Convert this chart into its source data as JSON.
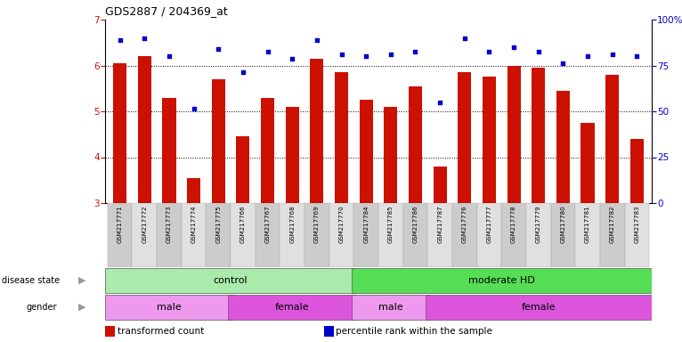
{
  "title": "GDS2887 / 204369_at",
  "samples": [
    "GSM217771",
    "GSM217772",
    "GSM217773",
    "GSM217774",
    "GSM217775",
    "GSM217766",
    "GSM217767",
    "GSM217768",
    "GSM217769",
    "GSM217770",
    "GSM217784",
    "GSM217785",
    "GSM217786",
    "GSM217787",
    "GSM217776",
    "GSM217777",
    "GSM217778",
    "GSM217779",
    "GSM217780",
    "GSM217781",
    "GSM217782",
    "GSM217783"
  ],
  "bar_values": [
    6.05,
    6.2,
    5.3,
    3.55,
    5.7,
    4.45,
    5.3,
    5.1,
    6.15,
    5.85,
    5.25,
    5.1,
    5.55,
    3.8,
    5.85,
    5.75,
    6.0,
    5.95,
    5.45,
    4.75,
    5.8,
    4.4
  ],
  "dot_values": [
    6.55,
    6.6,
    6.2,
    5.05,
    6.35,
    5.85,
    6.3,
    6.15,
    6.55,
    6.25,
    6.2,
    6.25,
    6.3,
    5.2,
    6.6,
    6.3,
    6.4,
    6.3,
    6.05,
    6.2,
    6.25,
    6.2
  ],
  "ylim_left": [
    3,
    7
  ],
  "ylim_right": [
    0,
    100
  ],
  "yticks_left": [
    3,
    4,
    5,
    6,
    7
  ],
  "yticks_right": [
    0,
    25,
    50,
    75,
    100
  ],
  "bar_color": "#cc1100",
  "dot_color": "#0000cc",
  "disease_state_groups": [
    {
      "label": "control",
      "start": 0,
      "end": 10,
      "color": "#aaeaaa"
    },
    {
      "label": "moderate HD",
      "start": 10,
      "end": 22,
      "color": "#55dd55"
    }
  ],
  "gender_groups": [
    {
      "label": "male",
      "start": 0,
      "end": 5,
      "color": "#ee99ee"
    },
    {
      "label": "female",
      "start": 5,
      "end": 10,
      "color": "#dd55dd"
    },
    {
      "label": "male",
      "start": 10,
      "end": 13,
      "color": "#ee99ee"
    },
    {
      "label": "female",
      "start": 13,
      "end": 22,
      "color": "#dd55dd"
    }
  ],
  "legend_items": [
    {
      "label": "transformed count",
      "color": "#cc1100"
    },
    {
      "label": "percentile rank within the sample",
      "color": "#0000cc"
    }
  ],
  "bg_color": "#ffffff",
  "tick_color_left": "#cc1100",
  "tick_color_right": "#0000cc",
  "xtick_bg_even": "#cccccc",
  "xtick_bg_odd": "#e0e0e0"
}
